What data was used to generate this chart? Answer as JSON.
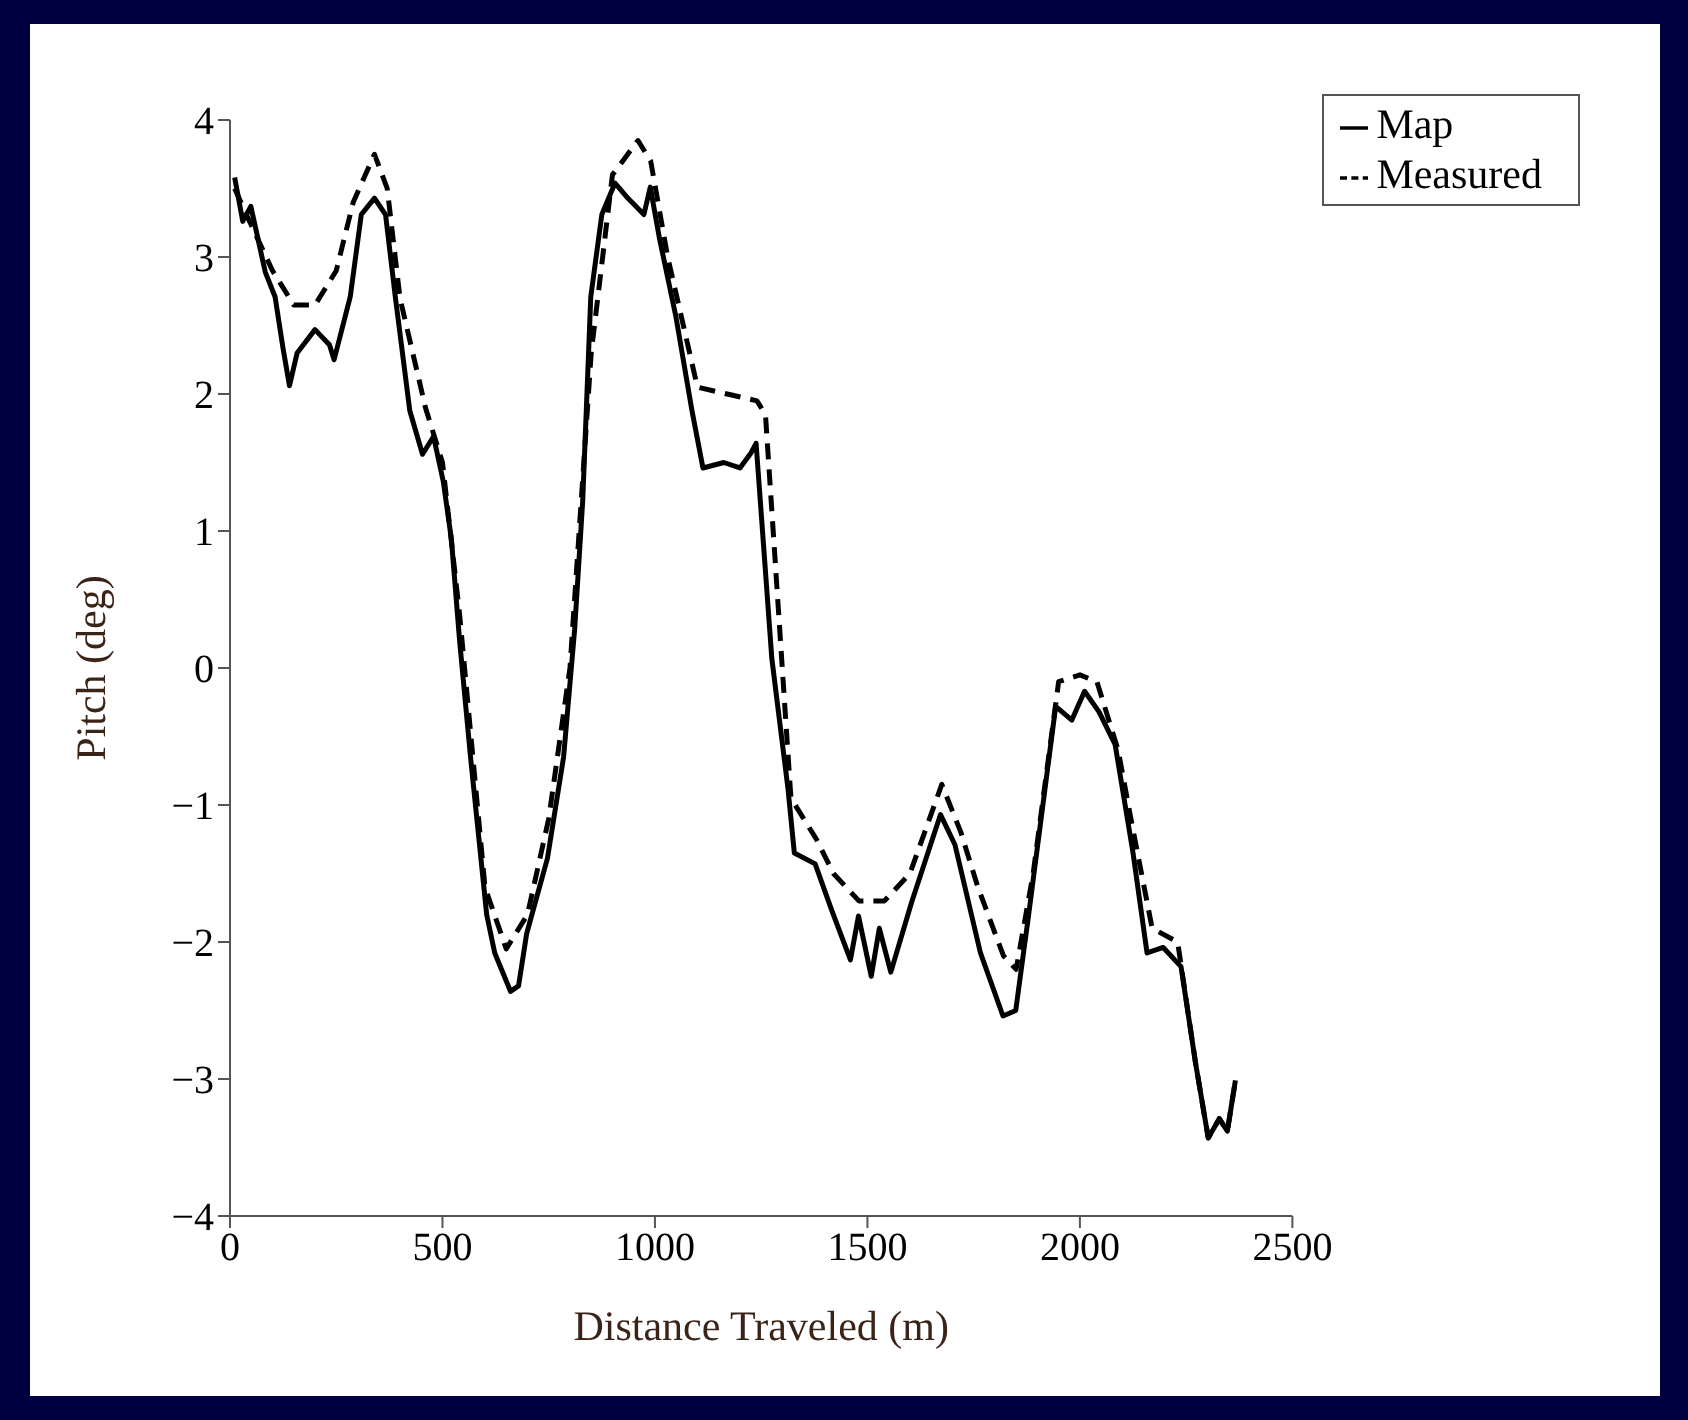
{
  "chart_data": {
    "type": "line",
    "xlabel": "Distance Traveled (m)",
    "ylabel": "Pitch (deg)",
    "xlim": [
      0,
      2500
    ],
    "xticks": [
      0,
      500,
      1000,
      1500,
      2000,
      2500
    ],
    "ylim": [
      -4,
      4
    ],
    "yticks": [
      {
        "value": -4,
        "label": "−4"
      },
      {
        "value": -3,
        "label": "−3"
      },
      {
        "value": -2,
        "label": "−2"
      },
      {
        "value": -1,
        "label": "−1"
      },
      0,
      1,
      2,
      3,
      4
    ],
    "grid": false,
    "legend": "top right",
    "marker": "none",
    "series": [
      {
        "name": "Map",
        "color": "#000000",
        "line_style": "solid",
        "x": [
          11,
          30,
          49,
          83,
          106,
          125,
          140,
          158,
          200,
          234,
          245,
          283,
          309,
          340,
          366,
          389,
          423,
          453,
          479,
          502,
          521,
          540,
          566,
          604,
          623,
          660,
          679,
          698,
          747,
          785,
          811,
          830,
          849,
          875,
          906,
          936,
          974,
          989,
          1011,
          1049,
          1087,
          1113,
          1162,
          1200,
          1226,
          1238,
          1275,
          1313,
          1328,
          1377,
          1415,
          1460,
          1479,
          1509,
          1528,
          1555,
          1604,
          1672,
          1706,
          1766,
          1819,
          1849,
          1879,
          1943,
          1981,
          2011,
          2045,
          2083,
          2125,
          2158,
          2196,
          2238,
          2272,
          2302,
          2328,
          2347,
          2366
        ],
        "values": [
          3.58,
          3.26,
          3.37,
          2.89,
          2.71,
          2.33,
          2.06,
          2.3,
          2.47,
          2.36,
          2.25,
          2.71,
          3.31,
          3.43,
          3.31,
          2.71,
          1.88,
          1.56,
          1.69,
          1.36,
          0.94,
          0.21,
          -0.65,
          -1.8,
          -2.08,
          -2.36,
          -2.32,
          -1.94,
          -1.39,
          -0.65,
          0.28,
          1.22,
          2.71,
          3.31,
          3.54,
          3.43,
          3.31,
          3.51,
          3.13,
          2.57,
          1.88,
          1.46,
          1.5,
          1.46,
          1.57,
          1.64,
          0.07,
          -0.88,
          -1.35,
          -1.43,
          -1.76,
          -2.13,
          -1.81,
          -2.25,
          -1.9,
          -2.22,
          -1.71,
          -1.07,
          -1.29,
          -2.08,
          -2.54,
          -2.5,
          -1.81,
          -0.28,
          -0.38,
          -0.17,
          -0.32,
          -0.56,
          -1.35,
          -2.08,
          -2.04,
          -2.18,
          -2.88,
          -3.43,
          -3.29,
          -3.38,
          -3.01
        ]
      },
      {
        "name": "Measured",
        "color": "#000000",
        "line_style": "dashed",
        "x": [
          11,
          40,
          100,
          150,
          200,
          250,
          290,
          340,
          370,
          400,
          460,
          500,
          540,
          600,
          650,
          700,
          750,
          800,
          850,
          900,
          960,
          990,
          1030,
          1100,
          1170,
          1240,
          1260,
          1320,
          1380,
          1420,
          1480,
          1540,
          1600,
          1675,
          1720,
          1760,
          1820,
          1850,
          1890,
          1950,
          2000,
          2040,
          2090,
          2120,
          2170,
          2230,
          2272,
          2302,
          2328,
          2347,
          2366
        ],
        "values": [
          3.5,
          3.3,
          2.9,
          2.65,
          2.65,
          2.9,
          3.4,
          3.75,
          3.5,
          2.7,
          1.9,
          1.5,
          0.4,
          -1.6,
          -2.05,
          -1.8,
          -1.1,
          0.0,
          2.3,
          3.6,
          3.85,
          3.7,
          3.0,
          2.05,
          2.0,
          1.95,
          1.85,
          -0.95,
          -1.25,
          -1.5,
          -1.7,
          -1.7,
          -1.5,
          -0.85,
          -1.2,
          -1.6,
          -2.1,
          -2.2,
          -1.5,
          -0.1,
          -0.05,
          -0.1,
          -0.6,
          -1.1,
          -1.9,
          -2.0,
          -2.88,
          -3.43,
          -3.29,
          -3.38,
          -3.01
        ]
      }
    ]
  }
}
